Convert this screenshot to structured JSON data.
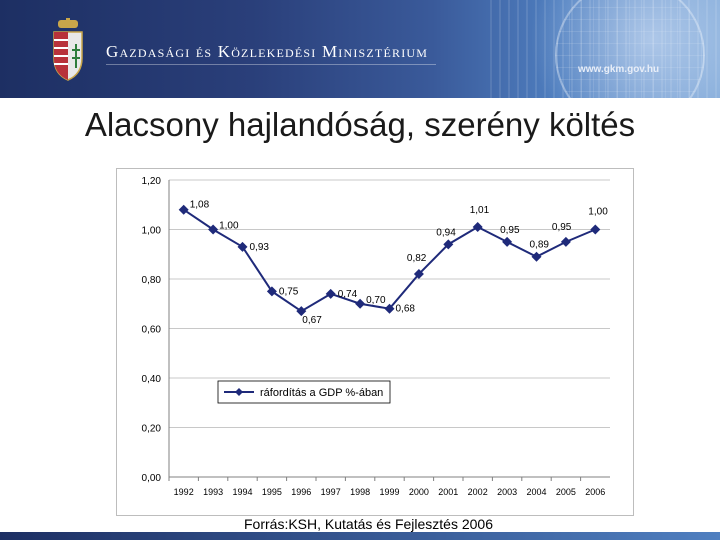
{
  "header": {
    "ministry_name": "Gazdasági és Közlekedési Minisztérium",
    "url": "www.gkm.gov.hu"
  },
  "slide": {
    "title": "Alacsony hajlandóság, szerény költés",
    "source": "Forrás:KSH, Kutatás és Fejlesztés 2006"
  },
  "colors": {
    "series": "#1f2a7a",
    "banner_dark": "#1d2f63",
    "grid": "#c8c8c8"
  },
  "chart_data": {
    "type": "line",
    "x": [
      "1992",
      "1993",
      "1994",
      "1995",
      "1996",
      "1997",
      "1998",
      "1999",
      "2000",
      "2001",
      "2002",
      "2003",
      "2004",
      "2005",
      "2006"
    ],
    "series": [
      {
        "name": "ráfordítás a GDP %-ában",
        "values": [
          1.08,
          1.0,
          0.93,
          0.75,
          0.67,
          0.74,
          0.7,
          0.68,
          0.82,
          0.94,
          1.01,
          0.95,
          0.89,
          0.95,
          1.0
        ],
        "data_labels": [
          "1,08",
          "1,00",
          "0,93",
          "0,75",
          "0,67",
          "0,74",
          "0,70",
          "0,68",
          "0,82",
          "0,94",
          "1,01",
          "0,95",
          "0,89",
          "0,95",
          "1,00"
        ]
      }
    ],
    "ylim": [
      0,
      1.2
    ],
    "yticks": [
      "0,00",
      "0,20",
      "0,40",
      "0,60",
      "0,80",
      "1,00",
      "1,20"
    ],
    "grid": true,
    "legend_position": "lower-left",
    "marker": "diamond"
  }
}
